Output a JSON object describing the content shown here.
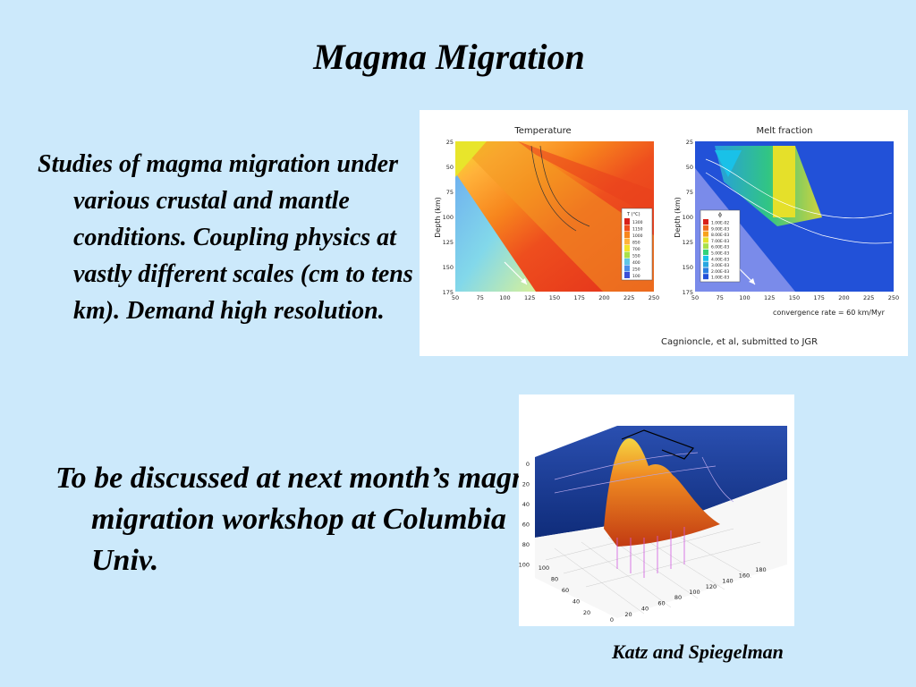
{
  "slide": {
    "title": "Magma Migration",
    "bullet1": "Studies of magma migration under various crustal and mantle conditions. Coupling physics at vastly different scales (cm to tens of km). Demand high resolution.",
    "bullet2": "To be discussed at next month’s magma migration workshop at Columbia Univ.",
    "credit": "Katz and Spiegelman"
  },
  "figure_top": {
    "panel_left_title": "Temperature",
    "panel_right_title": "Melt fraction",
    "ylabel": "Depth (km)",
    "y_ticks": [
      "25",
      "50",
      "75",
      "100",
      "125",
      "150",
      "175"
    ],
    "x_ticks": [
      "50",
      "75",
      "100",
      "125",
      "150",
      "175",
      "200",
      "225",
      "250"
    ],
    "temp_legend_title": "T (°C)",
    "temp_legend": [
      "1300",
      "1150",
      "1000",
      "850",
      "700",
      "550",
      "400",
      "250",
      "100"
    ],
    "melt_legend_title": "ϕ",
    "melt_legend": [
      "1.00E-02",
      "9.00E-03",
      "8.00E-03",
      "7.00E-03",
      "6.00E-03",
      "5.00E-03",
      "4.00E-03",
      "3.00E-03",
      "2.00E-03",
      "1.00E-03"
    ],
    "convergence": "convergence rate = 60 km/Myr",
    "citation": "Cagnioncle, et al, submitted to JGR",
    "colors": {
      "hot": "#e83a1c",
      "warm": "#f7a21b",
      "mid": "#e5e02a",
      "cool": "#5fc7e6",
      "cold": "#7a8bea",
      "deepblue": "#2251d8"
    }
  },
  "figure_bottom": {
    "z_ticks": [
      "0",
      "20",
      "40",
      "60",
      "80",
      "100"
    ],
    "x_ticks": [
      "0",
      "20",
      "40",
      "60",
      "80",
      "100",
      "120",
      "140",
      "160",
      "180"
    ],
    "y_ticks": [
      "20",
      "40",
      "60",
      "80",
      "100"
    ],
    "colors": {
      "wall": "#1d3f9a",
      "surface": "#d94a1a",
      "peak": "#f4c43b"
    }
  }
}
